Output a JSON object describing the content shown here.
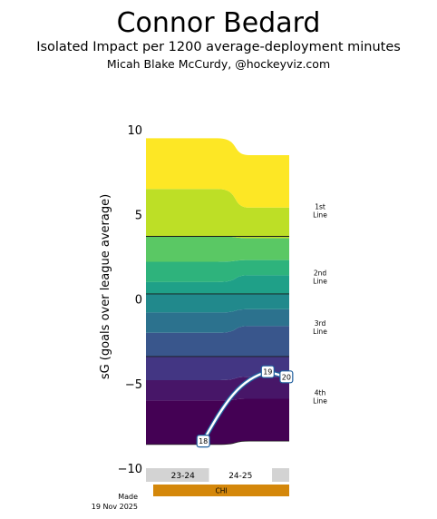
{
  "header": {
    "title": "Connor Bedard",
    "subtitle": "Isolated Impact per 1200 average-deployment minutes",
    "credit": "Micah Blake McCurdy, @hockeyviz.com"
  },
  "footer": {
    "made_label": "Made",
    "made_date": "19 Nov 2025"
  },
  "chart_data": {
    "type": "area",
    "ylabel": "sG (goals over league average)",
    "ylim": [
      -10,
      10
    ],
    "yticks": [
      10,
      5,
      0,
      -5,
      -10
    ],
    "x_anchors": [
      0,
      0.5,
      1.0
    ],
    "bands_bottom_to_top": [
      {
        "lower": [
          -8.6,
          -8.6,
          -8.4
        ],
        "upper": [
          -6.0,
          -6.0,
          -5.9
        ],
        "color": "#440154"
      },
      {
        "lower": [
          -6.0,
          -6.0,
          -5.9
        ],
        "upper": [
          -4.8,
          -4.8,
          -4.6
        ],
        "color": "#471668"
      },
      {
        "lower": [
          -4.8,
          -4.8,
          -4.6
        ],
        "upper": [
          -3.4,
          -3.4,
          -3.4
        ],
        "color": "#433683"
      },
      {
        "lower": [
          -3.4,
          -3.4,
          -3.4
        ],
        "upper": [
          -2.0,
          -2.0,
          -1.6
        ],
        "color": "#39568c"
      },
      {
        "lower": [
          -2.0,
          -2.0,
          -1.6
        ],
        "upper": [
          -0.8,
          -0.8,
          -0.6
        ],
        "color": "#2c728e"
      },
      {
        "lower": [
          -0.8,
          -0.8,
          -0.6
        ],
        "upper": [
          0.3,
          0.3,
          0.3
        ],
        "color": "#21898c"
      },
      {
        "lower": [
          0.3,
          0.3,
          0.3
        ],
        "upper": [
          1.0,
          1.0,
          1.4
        ],
        "color": "#1fa088"
      },
      {
        "lower": [
          1.0,
          1.0,
          1.4
        ],
        "upper": [
          2.2,
          2.2,
          2.3
        ],
        "color": "#2eb37c"
      },
      {
        "lower": [
          2.2,
          2.2,
          2.3
        ],
        "upper": [
          3.7,
          3.7,
          3.6
        ],
        "color": "#5ac864"
      },
      {
        "lower": [
          3.7,
          3.7,
          3.6
        ],
        "upper": [
          6.5,
          6.5,
          5.4
        ],
        "color": "#bddf26"
      },
      {
        "lower": [
          6.5,
          6.5,
          5.4
        ],
        "upper": [
          9.5,
          9.5,
          8.5
        ],
        "color": "#fde725"
      }
    ],
    "line_separators": [
      -3.4,
      0.3,
      3.7
    ],
    "line_labels": [
      {
        "text": [
          "1st",
          "Line"
        ],
        "y": 5.2
      },
      {
        "text": [
          "2nd",
          "Line"
        ],
        "y": 1.3
      },
      {
        "text": [
          "3rd",
          "Line"
        ],
        "y": -1.7
      },
      {
        "text": [
          "4th",
          "Line"
        ],
        "y": -5.8
      }
    ],
    "trajectory": [
      {
        "label": "18",
        "x": 0.4,
        "y": -8.4
      },
      {
        "label": "19",
        "x": 0.85,
        "y": -4.3
      },
      {
        "label": "20",
        "x": 0.98,
        "y": -4.6
      }
    ],
    "seasons": [
      {
        "label": "23-24",
        "start": 0,
        "end": 0.44,
        "fill": "#d3d3d3"
      },
      {
        "label": "24-25",
        "start": 0.44,
        "end": 0.88,
        "fill": "#ffffff"
      },
      {
        "label": "",
        "start": 0.88,
        "end": 1.0,
        "fill": "#d3d3d3"
      }
    ],
    "team": {
      "label": "CHI",
      "color": "#d4870a"
    }
  }
}
